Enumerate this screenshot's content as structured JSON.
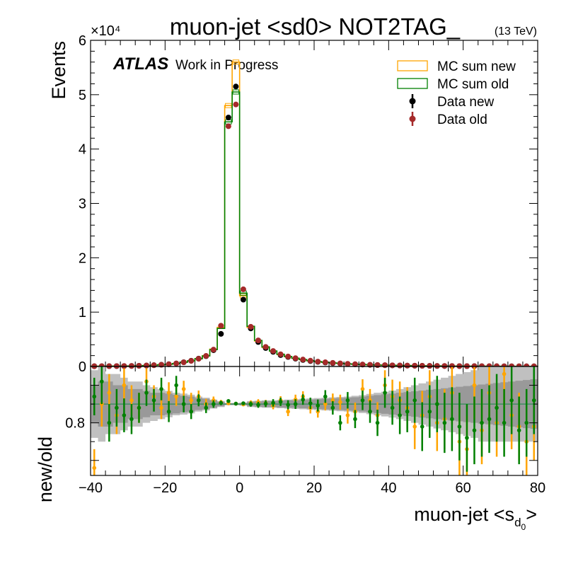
{
  "chart_data": [
    {
      "type": "histogram",
      "title": "muon-jet <sd0> NOT2TAG_",
      "energy_label": "(13 TeV)",
      "experiment": "ATLAS",
      "experiment_status": "Work in Progress",
      "ylabel": "Events",
      "y_multiplier": "×10⁴",
      "y_tick_labels": [
        "0",
        "1",
        "2",
        "3",
        "4",
        "5",
        "6"
      ],
      "ylim": [
        0,
        60000
      ],
      "xlim": [
        -40,
        80
      ],
      "legend_position": "top-right",
      "x": [
        -39,
        -37,
        -35,
        -33,
        -31,
        -29,
        -27,
        -25,
        -23,
        -21,
        -19,
        -17,
        -15,
        -13,
        -11,
        -9,
        -7,
        -5,
        -3,
        -1,
        1,
        3,
        5,
        7,
        9,
        11,
        13,
        15,
        17,
        19,
        21,
        23,
        25,
        27,
        29,
        31,
        33,
        35,
        37,
        39,
        41,
        43,
        45,
        47,
        49,
        51,
        53,
        55,
        57,
        59,
        61,
        63,
        65,
        67,
        69,
        71,
        73,
        75,
        77,
        79
      ],
      "series": [
        {
          "name": "MC sum new",
          "style": "histogram",
          "color": "#ffa500",
          "values": [
            50,
            55,
            60,
            70,
            80,
            100,
            130,
            180,
            240,
            320,
            420,
            560,
            780,
            1050,
            1450,
            2000,
            3200,
            7200,
            48000,
            56000,
            13000,
            7200,
            4700,
            3500,
            2800,
            2200,
            1800,
            1500,
            1250,
            1050,
            880,
            760,
            650,
            560,
            480,
            410,
            360,
            310,
            270,
            240,
            210,
            185,
            165,
            145,
            128,
            114,
            100,
            90,
            80,
            72,
            65,
            58,
            52,
            47,
            42,
            38,
            35,
            32,
            29,
            26
          ]
        },
        {
          "name": "MC sum old",
          "style": "histogram",
          "color": "#008000",
          "values": [
            48,
            52,
            58,
            68,
            78,
            98,
            126,
            175,
            235,
            315,
            410,
            550,
            770,
            1030,
            1420,
            1950,
            3100,
            7000,
            45000,
            50500,
            13500,
            7400,
            4800,
            3600,
            2850,
            2250,
            1840,
            1530,
            1280,
            1070,
            900,
            775,
            665,
            570,
            490,
            420,
            365,
            315,
            275,
            245,
            215,
            190,
            168,
            148,
            130,
            116,
            102,
            92,
            82,
            73,
            66,
            59,
            53,
            48,
            43,
            39,
            36,
            33,
            30,
            27
          ]
        },
        {
          "name": "Data new",
          "style": "points",
          "color": "#000000",
          "values": [
            50,
            55,
            60,
            70,
            80,
            100,
            130,
            180,
            240,
            320,
            420,
            560,
            780,
            1050,
            1450,
            1900,
            3000,
            6000,
            45800,
            51500,
            12300,
            7000,
            4500,
            3400,
            2700,
            2100,
            1750,
            1450,
            1200,
            1000,
            850,
            730,
            620,
            540,
            460,
            400,
            350,
            300,
            260,
            230,
            200,
            180,
            160,
            140,
            125,
            110,
            98,
            88,
            78,
            70,
            63,
            57,
            51,
            46,
            41,
            37,
            34,
            31,
            28,
            25
          ]
        },
        {
          "name": "Data old",
          "style": "points",
          "color": "#a52a2a",
          "values": [
            48,
            52,
            58,
            68,
            78,
            98,
            126,
            175,
            235,
            315,
            410,
            550,
            770,
            1030,
            1420,
            1950,
            3100,
            7500,
            44200,
            48200,
            14200,
            7300,
            4800,
            3600,
            2850,
            2250,
            1840,
            1530,
            1280,
            1070,
            900,
            775,
            665,
            570,
            490,
            420,
            365,
            315,
            275,
            245,
            215,
            190,
            168,
            148,
            130,
            116,
            102,
            92,
            82,
            73,
            66,
            59,
            53,
            48,
            43,
            39,
            36,
            33,
            30,
            27
          ]
        }
      ]
    },
    {
      "type": "ratio",
      "ylabel": "new/old",
      "xlabel_main": "muon-jet <s",
      "xlabel_sub": "d",
      "xlabel_subsub": "0",
      "xlabel_end": ">",
      "ylim": [
        0.66,
        0.95
      ],
      "y_tick_labels": [
        "0.8"
      ],
      "y_tick_values": [
        0.8
      ],
      "x_tick_values": [
        -40,
        -20,
        0,
        20,
        40,
        60,
        80
      ],
      "x_tick_labels": [
        "−40",
        "−20",
        "0",
        "20",
        "40",
        "60",
        "80"
      ],
      "xlim": [
        -40,
        80
      ],
      "reference_line": 0.85,
      "band_colors": {
        "inner": "#999999",
        "outer": "#c0c0c0"
      },
      "band_inner_halfwidth": [
        0.05,
        0.06,
        0.06,
        0.05,
        0.05,
        0.04,
        0.04,
        0.035,
        0.03,
        0.03,
        0.028,
        0.025,
        0.022,
        0.02,
        0.016,
        0.014,
        0.01,
        0.006,
        0.002,
        0.002,
        0.003,
        0.006,
        0.007,
        0.008,
        0.008,
        0.009,
        0.01,
        0.01,
        0.011,
        0.012,
        0.013,
        0.014,
        0.015,
        0.016,
        0.017,
        0.018,
        0.02,
        0.022,
        0.024,
        0.026,
        0.028,
        0.03,
        0.032,
        0.034,
        0.036,
        0.038,
        0.04,
        0.042,
        0.044,
        0.046,
        0.048,
        0.05,
        0.052,
        0.054,
        0.056,
        0.058,
        0.06,
        0.062,
        0.064,
        0.066
      ],
      "band_outer_halfwidth": [
        0.09,
        0.1,
        0.08,
        0.08,
        0.07,
        0.06,
        0.06,
        0.05,
        0.045,
        0.04,
        0.035,
        0.03,
        0.028,
        0.025,
        0.02,
        0.017,
        0.012,
        0.008,
        0.003,
        0.003,
        0.004,
        0.008,
        0.009,
        0.01,
        0.01,
        0.011,
        0.012,
        0.013,
        0.014,
        0.015,
        0.016,
        0.017,
        0.018,
        0.019,
        0.02,
        0.022,
        0.024,
        0.027,
        0.03,
        0.033,
        0.036,
        0.04,
        0.045,
        0.05,
        0.055,
        0.06,
        0.065,
        0.07,
        0.075,
        0.08,
        0.085,
        0.09,
        0.1,
        0.1,
        0.1,
        0.1,
        0.1,
        0.1,
        0.1,
        0.1
      ],
      "series": [
        {
          "name": "MC sum new",
          "style": "points",
          "color": "#ffa500",
          "values": [
            0.68,
            0.85,
            0.88,
            0.82,
            0.9,
            0.86,
            0.84,
            0.91,
            0.87,
            0.84,
            0.88,
            0.87,
            0.89,
            0.86,
            0.87,
            0.85,
            0.86,
            0.855,
            0.852,
            0.851,
            0.849,
            0.853,
            0.855,
            0.852,
            0.846,
            0.86,
            0.83,
            0.862,
            0.87,
            0.84,
            0.83,
            0.85,
            0.86,
            0.855,
            0.82,
            0.83,
            0.89,
            0.86,
            0.82,
            0.9,
            0.87,
            0.86,
            0.84,
            0.79,
            0.82,
            0.87,
            0.8,
            0.81,
            0.88,
            0.75,
            0.73,
            0.9,
            0.78,
            0.88,
            0.8,
            0.93,
            0.82,
            0.79,
            0.75,
            0.79
          ],
          "errors": [
            0.05,
            0.06,
            0.05,
            0.05,
            0.045,
            0.04,
            0.04,
            0.035,
            0.03,
            0.03,
            0.028,
            0.025,
            0.022,
            0.02,
            0.016,
            0.014,
            0.01,
            0.006,
            0.003,
            0.003,
            0.004,
            0.007,
            0.008,
            0.009,
            0.01,
            0.011,
            0.012,
            0.013,
            0.014,
            0.015,
            0.016,
            0.017,
            0.018,
            0.02,
            0.022,
            0.024,
            0.026,
            0.03,
            0.035,
            0.04,
            0.045,
            0.05,
            0.055,
            0.06,
            0.065,
            0.07,
            0.075,
            0.08,
            0.085,
            0.09,
            0.09,
            0.09,
            0.09,
            0.09,
            0.09,
            0.09,
            0.09,
            0.09,
            0.09,
            0.09
          ]
        },
        {
          "name": "MC sum old",
          "style": "points",
          "color": "#008000",
          "values": [
            0.87,
            0.91,
            0.8,
            0.84,
            0.82,
            0.81,
            0.84,
            0.88,
            0.86,
            0.89,
            0.83,
            0.9,
            0.85,
            0.83,
            0.86,
            0.84,
            0.85,
            0.853,
            0.858,
            0.851,
            0.852,
            0.85,
            0.848,
            0.851,
            0.853,
            0.856,
            0.848,
            0.85,
            0.862,
            0.852,
            0.846,
            0.87,
            0.84,
            0.8,
            0.86,
            0.81,
            0.86,
            0.83,
            0.8,
            0.88,
            0.84,
            0.82,
            0.83,
            0.86,
            0.79,
            0.83,
            0.85,
            0.8,
            0.81,
            0.79,
            0.76,
            0.78,
            0.8,
            0.81,
            0.84,
            0.8,
            0.86,
            0.78,
            0.8,
            0.86
          ],
          "errors": [
            0.05,
            0.06,
            0.05,
            0.05,
            0.045,
            0.04,
            0.04,
            0.035,
            0.03,
            0.03,
            0.028,
            0.025,
            0.022,
            0.02,
            0.016,
            0.014,
            0.01,
            0.006,
            0.003,
            0.003,
            0.004,
            0.007,
            0.008,
            0.009,
            0.01,
            0.011,
            0.012,
            0.013,
            0.014,
            0.015,
            0.016,
            0.017,
            0.018,
            0.02,
            0.022,
            0.024,
            0.026,
            0.03,
            0.035,
            0.04,
            0.045,
            0.05,
            0.055,
            0.06,
            0.065,
            0.07,
            0.075,
            0.08,
            0.085,
            0.09,
            0.09,
            0.09,
            0.09,
            0.09,
            0.09,
            0.09,
            0.09,
            0.09,
            0.09,
            0.09
          ]
        }
      ]
    }
  ]
}
